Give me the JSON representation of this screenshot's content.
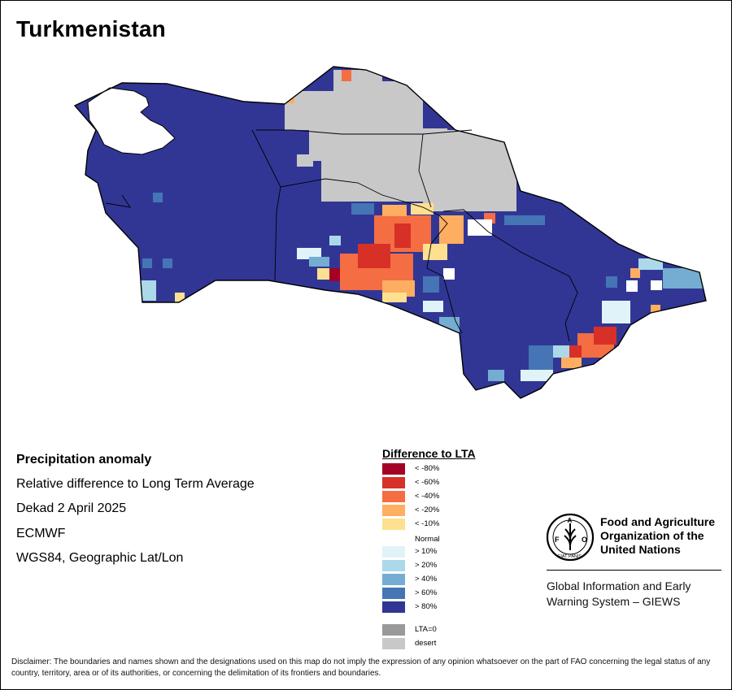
{
  "map": {
    "title": "Turkmenistan"
  },
  "info": {
    "heading": "Precipitation anomaly",
    "line1": "Relative difference to Long Term Average",
    "line2": "Dekad 2 April 2025",
    "line3": "ECMWF",
    "line4": "WGS84, Geographic Lat/Lon"
  },
  "legend": {
    "title": "Difference to LTA",
    "normal_label": "Normal",
    "items": [
      {
        "label": "< -80%",
        "color": "#a50026"
      },
      {
        "label": "< -60%",
        "color": "#d73027"
      },
      {
        "label": "< -40%",
        "color": "#f46d43"
      },
      {
        "label": "< -20%",
        "color": "#fdae61"
      },
      {
        "label": "< -10%",
        "color": "#fee090"
      },
      {
        "label": "> 10%",
        "color": "#e0f3f8"
      },
      {
        "label": "> 20%",
        "color": "#abd9e9"
      },
      {
        "label": "> 40%",
        "color": "#74add1"
      },
      {
        "label": "> 60%",
        "color": "#4575b4"
      },
      {
        "label": "> 80%",
        "color": "#313695"
      },
      {
        "label": "LTA=0",
        "color": "#999999"
      },
      {
        "label": "desert",
        "color": "#c8c8c8"
      }
    ]
  },
  "org": {
    "logo_text": "FAO",
    "logo_motto": "FIAT PANIS",
    "name_line1": "Food and Agriculture",
    "name_line2": "Organization of the",
    "name_line3": "United Nations",
    "giews_line1": "Global Information and Early",
    "giews_line2": "Warning System – GIEWS"
  },
  "disclaimer": "Disclaimer: The boundaries and names shown and the designations used on this map do not imply the expression of any opinion whatsoever on the part of FAO concerning the legal status of any country, territory, area or of its authorities, or concerning the delimitation of its frontiers and boundaries."
}
